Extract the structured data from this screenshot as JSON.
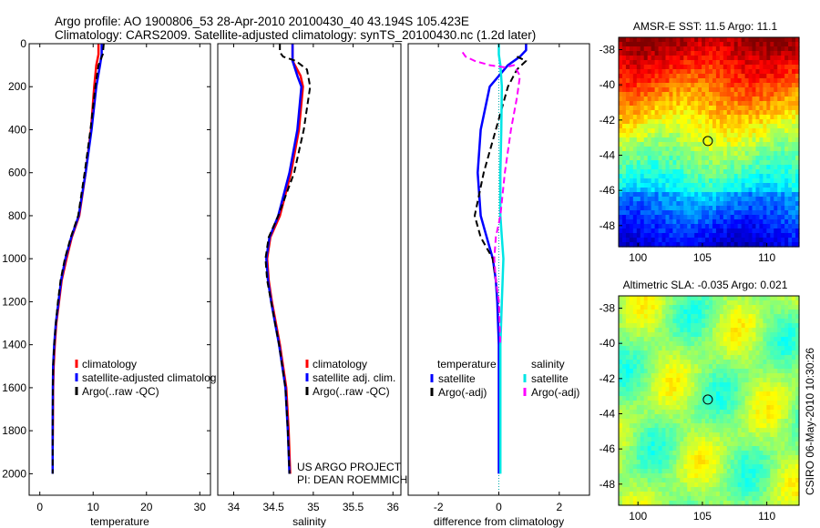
{
  "header": {
    "title_line1": "Argo profile: AO 1900806_53 28-Apr-2010 20100430_40 43.194S 105.423E",
    "title_line2": "Climatology: CARS2009. Satellite-adjusted climatology: synTS_20100430.nc (1.2d later)"
  },
  "colors": {
    "climatology": "#ff0000",
    "satellite": "#0000ff",
    "argo": "#000000",
    "satellite_salinity": "#00e5e5",
    "argo_salinity": "#ff00ff"
  },
  "chart_data": [
    {
      "id": "temperature",
      "type": "line",
      "xlabel": "temperature",
      "xlim": [
        -2,
        32
      ],
      "ylim": [
        0,
        2100
      ],
      "xticks": [
        0,
        10,
        20,
        30
      ],
      "yticks": [
        0,
        200,
        400,
        600,
        800,
        1000,
        1200,
        1400,
        1600,
        1800,
        2000
      ],
      "legend": [
        "climatology",
        "satellite-adjusted climatolog",
        "Argo(..raw -QC)"
      ],
      "series": [
        {
          "name": "climatology",
          "color": "#ff0000",
          "width": 2.5,
          "x": [
            11,
            11,
            10.6,
            10.2,
            9.6,
            8.6,
            7.4,
            6.0,
            5.0,
            4.1,
            3.6,
            3.1,
            2.8,
            2.6,
            2.5,
            2.45,
            2.4
          ],
          "y": [
            0,
            50,
            100,
            200,
            400,
            600,
            800,
            900,
            1000,
            1100,
            1200,
            1300,
            1400,
            1500,
            1600,
            1800,
            1880
          ]
        },
        {
          "name": "satellite",
          "color": "#0000ff",
          "width": 2.5,
          "x": [
            11.6,
            11.6,
            11.3,
            10.6,
            9.7,
            8.6,
            7.3,
            5.9,
            4.8,
            4.0,
            3.5,
            3.0,
            2.7,
            2.5,
            2.45,
            2.4,
            2.4,
            2.4
          ],
          "y": [
            0,
            50,
            100,
            200,
            400,
            600,
            800,
            900,
            1000,
            1100,
            1200,
            1300,
            1400,
            1500,
            1600,
            1800,
            1900,
            2000
          ]
        },
        {
          "name": "argo",
          "color": "#000000",
          "width": 2,
          "dash": "7,4",
          "x": [
            12.0,
            11.8,
            11.0,
            10.4,
            9.5,
            8.4,
            7.2,
            5.8,
            4.7,
            3.9,
            3.4,
            3.0,
            2.7,
            2.5,
            2.45,
            2.4,
            2.4
          ],
          "y": [
            0,
            50,
            100,
            200,
            400,
            600,
            800,
            900,
            1000,
            1100,
            1200,
            1300,
            1400,
            1500,
            1600,
            1800,
            2000
          ]
        }
      ]
    },
    {
      "id": "salinity",
      "type": "line",
      "xlabel": "salinity",
      "xlim": [
        33.8,
        36.1
      ],
      "ylim": [
        0,
        2100
      ],
      "xticks": [
        34,
        34.5,
        35,
        35.5,
        36
      ],
      "xticklabels": [
        "34",
        "34.5",
        "35",
        "35.5",
        "36"
      ],
      "legend": [
        "climatology",
        "satellite adj. clim.",
        "Argo(..raw -QC)"
      ],
      "annotation": [
        "US ARGO PROJECT",
        "PI: DEAN ROEMMICH"
      ],
      "series": [
        {
          "name": "climatology",
          "color": "#ff0000",
          "width": 2.5,
          "x": [
            34.74,
            34.74,
            34.84,
            34.87,
            34.82,
            34.72,
            34.58,
            34.46,
            34.42,
            34.44,
            34.48,
            34.53,
            34.58,
            34.62,
            34.66,
            34.69,
            34.71
          ],
          "y": [
            0,
            80,
            150,
            200,
            400,
            600,
            800,
            900,
            1000,
            1100,
            1200,
            1300,
            1400,
            1500,
            1600,
            1800,
            2000
          ]
        },
        {
          "name": "satellite",
          "color": "#0000ff",
          "width": 2.5,
          "x": [
            34.74,
            34.74,
            34.8,
            34.85,
            34.8,
            34.7,
            34.56,
            34.45,
            34.41,
            34.43,
            34.47,
            34.52,
            34.57,
            34.61,
            34.65,
            34.68,
            34.7
          ],
          "y": [
            0,
            80,
            150,
            200,
            400,
            600,
            800,
            900,
            1000,
            1100,
            1200,
            1300,
            1400,
            1500,
            1600,
            1800,
            2000
          ]
        },
        {
          "name": "argo",
          "color": "#000000",
          "width": 2,
          "dash": "7,4",
          "x": [
            34.58,
            34.58,
            34.62,
            34.78,
            34.92,
            34.96,
            34.88,
            34.76,
            34.56,
            34.44,
            34.4,
            34.42,
            34.47,
            34.52,
            34.57,
            34.61,
            34.65,
            34.68,
            34.7
          ],
          "y": [
            0,
            40,
            60,
            80,
            120,
            200,
            400,
            600,
            800,
            900,
            1000,
            1100,
            1200,
            1300,
            1400,
            1500,
            1600,
            1800,
            2000
          ]
        }
      ]
    },
    {
      "id": "difference",
      "type": "line",
      "xlabel": "difference from climatology",
      "xlim": [
        -3,
        3
      ],
      "ylim": [
        0,
        2100
      ],
      "xticks": [
        -2,
        0,
        2
      ],
      "legend_temperature_header": "temperature",
      "legend_salinity_header": "salinity",
      "legend_temperature": [
        "satellite",
        "Argo(-adj)"
      ],
      "legend_salinity": [
        "satellite",
        "Argo(-adj)"
      ],
      "series": [
        {
          "name": "temperature satellite",
          "color": "#0000ff",
          "width": 2.5,
          "x": [
            0.9,
            0.9,
            0.7,
            0.3,
            -0.3,
            -0.6,
            -0.7,
            -0.6,
            -0.4,
            -0.2,
            -0.1,
            -0.05,
            0,
            0,
            0,
            0,
            0
          ],
          "y": [
            0,
            30,
            60,
            100,
            200,
            400,
            600,
            800,
            900,
            1000,
            1100,
            1200,
            1400,
            1600,
            1700,
            1800,
            2000
          ]
        },
        {
          "name": "temperature Argo(-adj)",
          "color": "#000000",
          "width": 2,
          "dash": "7,4",
          "x": [
            0.6,
            0.9,
            0.6,
            0.3,
            -0.1,
            -0.5,
            -0.8,
            -0.6,
            -0.2,
            0,
            0.05
          ],
          "y": [
            60,
            80,
            120,
            200,
            400,
            600,
            800,
            900,
            1000,
            1200,
            1400
          ]
        },
        {
          "name": "salinity satellite",
          "color": "#00e5e5",
          "width": 2.5,
          "x": [
            0,
            0,
            0.05,
            0.1,
            0.08,
            0.05,
            0.05,
            0.1,
            0.15,
            0.1,
            0.05,
            0.05,
            0.05
          ],
          "y": [
            0,
            50,
            100,
            200,
            400,
            600,
            800,
            900,
            1000,
            1200,
            1400,
            1600,
            2000
          ]
        },
        {
          "name": "salinity Argo(-adj)",
          "color": "#ff00ff",
          "width": 2,
          "dash": "7,4",
          "x": [
            -1.2,
            -1.1,
            -0.8,
            -0.3,
            0.2,
            0.5,
            0.7,
            0.6,
            0.4,
            0.2,
            0.05,
            -0.1,
            -0.15,
            -0.1,
            0,
            0.05
          ],
          "y": [
            40,
            60,
            80,
            100,
            110,
            100,
            150,
            250,
            400,
            600,
            800,
            900,
            1000,
            1100,
            1200,
            1400
          ]
        }
      ]
    },
    {
      "id": "sst_map",
      "type": "heatmap",
      "title": "AMSR-E SST: 11.5 Argo: 11.1",
      "xlim": [
        98.5,
        112.5
      ],
      "ylim": [
        -49.2,
        -37.3
      ],
      "xticks": [
        100,
        105,
        110
      ],
      "yticks": [
        -38,
        -40,
        -42,
        -44,
        -46,
        -48
      ],
      "marker": {
        "lon": 105.423,
        "lat": -43.194
      }
    },
    {
      "id": "sla_map",
      "type": "heatmap",
      "title": "Altimetric SLA: -0.035 Argo: 0.021",
      "xlim": [
        98.5,
        112.5
      ],
      "ylim": [
        -49.2,
        -37.3
      ],
      "xticks": [
        100,
        105,
        110
      ],
      "yticks": [
        -38,
        -40,
        -42,
        -44,
        -46,
        -48
      ],
      "marker": {
        "lon": 105.423,
        "lat": -43.194
      }
    }
  ],
  "side_label": "CSIRO 06-May-2010 10:30:26"
}
